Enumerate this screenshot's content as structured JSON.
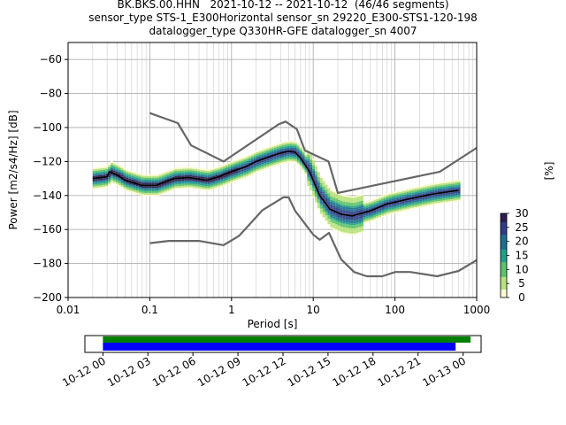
{
  "title_lines": [
    "BK.BKS.00.HHN   2021-10-12 -- 2021-10-12  (46/46 segments)",
    "sensor_type STS-1_E300Horizontal sensor_sn 29220_E300-STS1-120-198",
    "datalogger_type Q330HR-GFE datalogger_sn 4007"
  ],
  "colors": {
    "reference_model": "#666666",
    "mean_curve": "#000000",
    "coverage_blue": "#0000ff",
    "coverage_green": "#008000",
    "colormap": [
      "#fafad2",
      "#b7e27a",
      "#5dc26a",
      "#21a08a",
      "#1c6f8f",
      "#2f3e86",
      "#2d1e4f"
    ]
  },
  "colorbar": {
    "label": "[%]",
    "ticks": [
      "0",
      "5",
      "10",
      "15",
      "20",
      "25",
      "30"
    ],
    "range": [
      0,
      30
    ]
  },
  "chart_data": {
    "type": "heatmap",
    "xlabel": "Period [s]",
    "ylabel": "Power [m2/s4/Hz] [dB]",
    "xscale": "log",
    "xlim": [
      0.01,
      1000
    ],
    "ylim": [
      -200,
      -50
    ],
    "grid": true,
    "x_tick_labels": [
      "0.01",
      "0.1",
      "1",
      "10",
      "100",
      "1000"
    ],
    "y_tick_labels": [
      "−200",
      "−180",
      "−160",
      "−140",
      "−120",
      "−100",
      "−80",
      "−60"
    ],
    "y_ticks": [
      -200,
      -180,
      -160,
      -140,
      -120,
      -100,
      -80,
      -60
    ],
    "x_ticks": [
      0.01,
      0.1,
      1,
      10,
      100,
      1000
    ],
    "high_noise_model": [
      [
        0.1,
        -91.5
      ],
      [
        0.22,
        -97.4
      ],
      [
        0.32,
        -110.5
      ],
      [
        0.8,
        -120
      ],
      [
        3.8,
        -98
      ],
      [
        4.6,
        -96.5
      ],
      [
        6.3,
        -101
      ],
      [
        7.9,
        -113.5
      ],
      [
        15.4,
        -120
      ],
      [
        20,
        -138.5
      ],
      [
        354.8,
        -126
      ],
      [
        1000,
        -112
      ]
    ],
    "low_noise_model": [
      [
        0.1,
        -168
      ],
      [
        0.17,
        -166.7
      ],
      [
        0.4,
        -166.7
      ],
      [
        0.8,
        -169.2
      ],
      [
        1.24,
        -163.7
      ],
      [
        2.4,
        -148.6
      ],
      [
        4.3,
        -141.1
      ],
      [
        5,
        -141.1
      ],
      [
        6,
        -149
      ],
      [
        10,
        -163
      ],
      [
        12,
        -166
      ],
      [
        15.6,
        -162
      ],
      [
        21.9,
        -177.5
      ],
      [
        31.6,
        -185
      ],
      [
        45,
        -187.5
      ],
      [
        70,
        -187.5
      ],
      [
        101,
        -185
      ],
      [
        154,
        -185
      ],
      [
        328,
        -187.5
      ],
      [
        600,
        -184.4
      ],
      [
        1000,
        -178
      ]
    ],
    "mean_psd": [
      [
        0.02,
        -130
      ],
      [
        0.03,
        -129
      ],
      [
        0.032,
        -126
      ],
      [
        0.04,
        -128
      ],
      [
        0.05,
        -131
      ],
      [
        0.08,
        -134
      ],
      [
        0.12,
        -134
      ],
      [
        0.2,
        -130
      ],
      [
        0.3,
        -129.5
      ],
      [
        0.5,
        -131
      ],
      [
        0.7,
        -129
      ],
      [
        1,
        -126
      ],
      [
        1.5,
        -123
      ],
      [
        2,
        -120
      ],
      [
        3,
        -117
      ],
      [
        4,
        -115
      ],
      [
        5,
        -114
      ],
      [
        6,
        -114.5
      ],
      [
        7,
        -118
      ],
      [
        9,
        -126
      ],
      [
        12,
        -140
      ],
      [
        16,
        -148
      ],
      [
        22,
        -151
      ],
      [
        30,
        -152
      ],
      [
        50,
        -149
      ],
      [
        80,
        -145
      ],
      [
        150,
        -142
      ],
      [
        300,
        -139
      ],
      [
        600,
        -137
      ]
    ],
    "density_band_halfwidth_db": 6,
    "coverage": {
      "tick_labels": [
        "10-12 00",
        "10-12 03",
        "10-12 06",
        "10-12 09",
        "10-12 12",
        "10-12 15",
        "10-12 18",
        "10-12 21",
        "10-13 00"
      ],
      "tick_hours": [
        0,
        3,
        6,
        9,
        12,
        15,
        18,
        21,
        24
      ],
      "range_hours": [
        -1.2,
        25.2
      ],
      "data_available_hours": [
        0,
        24.5
      ],
      "psd_segments_hours": [
        0,
        23.5
      ]
    }
  }
}
